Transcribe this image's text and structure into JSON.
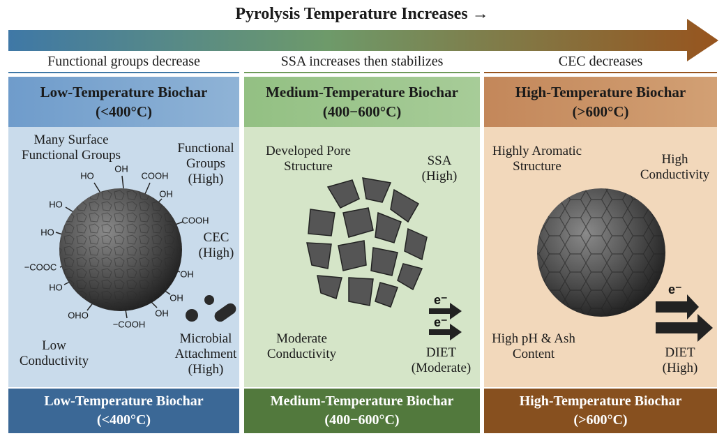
{
  "header": {
    "title": "Pyrolysis Temperature Increases →"
  },
  "trends": [
    "Functional groups decrease",
    "SSA increases then stabilizes",
    "CEC decreases"
  ],
  "panels": [
    {
      "title": "Low-Temperature Biochar",
      "range": "(<400°C)",
      "labels": [
        "Many Surface Functional Groups",
        "Functional Groups (High)",
        "CEC (High)",
        "Low Conductivity",
        "Microbial Attachment (High)"
      ],
      "groups": [
        "HO",
        "OH",
        "COOH",
        "OH",
        "HO",
        "COOH",
        "HO",
        "−COOC",
        "OH",
        "HO",
        "OH",
        "OHO",
        "−COOH",
        "OH"
      ]
    },
    {
      "title": "Medium-Temperature Biochar",
      "range": "(400−600°C)",
      "labels": [
        "Developed Pore Structure",
        "SSA (High)",
        "Moderate Conductivity",
        "DIET (Moderate)"
      ],
      "electrons": [
        "e⁻",
        "e⁻"
      ]
    },
    {
      "title": "High-Temperature Biochar",
      "range": "(>600°C)",
      "labels": [
        "Highly Aromatic Structure",
        "High Conductivity",
        "High pH & Ash Content",
        "DIET (High)"
      ],
      "electrons": [
        "e⁻"
      ]
    }
  ]
}
